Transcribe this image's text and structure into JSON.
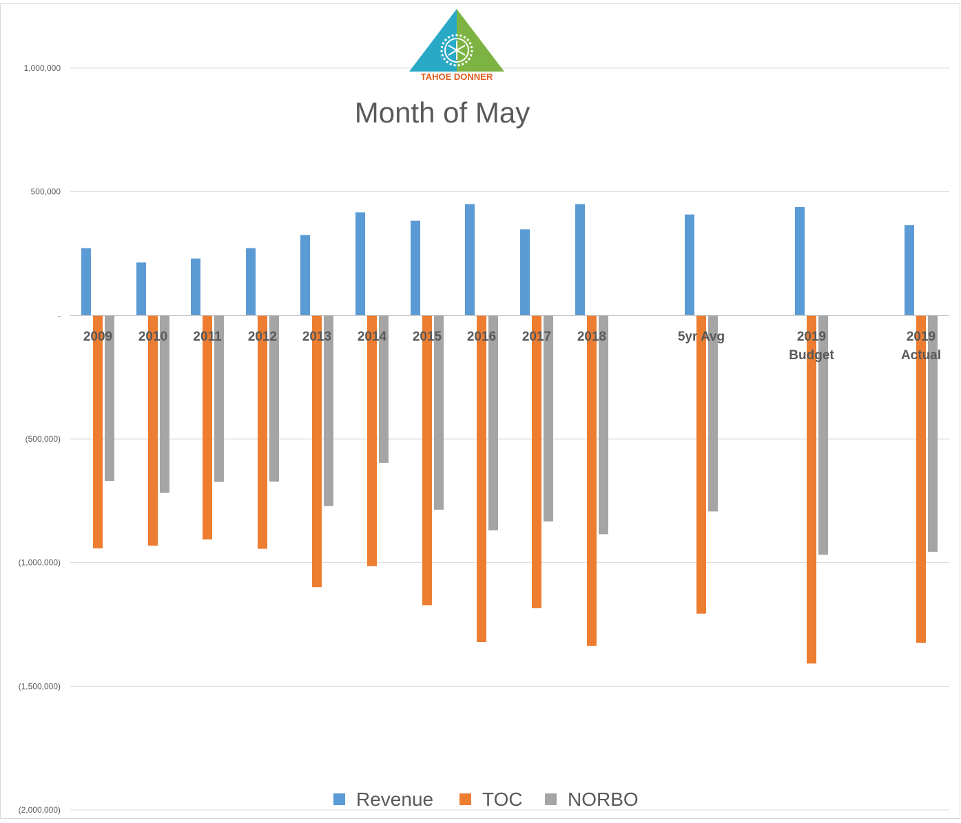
{
  "chart_data": {
    "type": "bar",
    "title": "Month of May",
    "xlabel": "",
    "ylabel": "",
    "ylim": [
      -2000000,
      1000000
    ],
    "yticks": [
      1000000,
      500000,
      0,
      -500000,
      -1000000,
      -1500000,
      -2000000
    ],
    "ytick_labels": [
      "1,000,000",
      "500,000",
      "-",
      "(500,000)",
      "(1,000,000)",
      "(1,500,000)",
      "(2,000,000)"
    ],
    "grid": true,
    "legend_position": "bottom",
    "categories": [
      "2009",
      "2010",
      "2011",
      "2012",
      "2013",
      "2014",
      "2015",
      "2016",
      "2017",
      "2018",
      "5yr Avg",
      "2019 Budget",
      "2019 Actual"
    ],
    "category_lines": [
      [
        "2009"
      ],
      [
        "2010"
      ],
      [
        "2011"
      ],
      [
        "2012"
      ],
      [
        "2013"
      ],
      [
        "2014"
      ],
      [
        "2015"
      ],
      [
        "2016"
      ],
      [
        "2017"
      ],
      [
        "2018"
      ],
      [
        "5yr Avg"
      ],
      [
        "2019",
        "Budget"
      ],
      [
        "2019",
        "Actual"
      ]
    ],
    "series": [
      {
        "name": "Revenue",
        "color": "#5b9bd5",
        "values": [
          272000,
          214000,
          230000,
          272000,
          325000,
          417000,
          383000,
          450000,
          348000,
          450000,
          408000,
          438000,
          365000
        ]
      },
      {
        "name": "TOC",
        "color": "#ed7d31",
        "values": [
          -942000,
          -931000,
          -906000,
          -944000,
          -1099000,
          -1014000,
          -1172000,
          -1321000,
          -1184000,
          -1337000,
          -1206000,
          -1408000,
          -1324000
        ]
      },
      {
        "name": "NORBO",
        "color": "#a5a5a5",
        "values": [
          -670000,
          -717000,
          -673000,
          -672000,
          -771000,
          -597000,
          -786000,
          -869000,
          -833000,
          -885000,
          -793000,
          -968000,
          -956000
        ]
      }
    ]
  },
  "logo": {
    "brand_text": "TAHOE DONNER",
    "brand_color": "#e05a1c",
    "left_color": "#2aa9c7",
    "right_color": "#7cb342",
    "icon": "snowflake-gear-icon"
  },
  "colors": {
    "grid": "#d9d9d9",
    "axis": "#bfbfbf",
    "text": "#595959"
  }
}
